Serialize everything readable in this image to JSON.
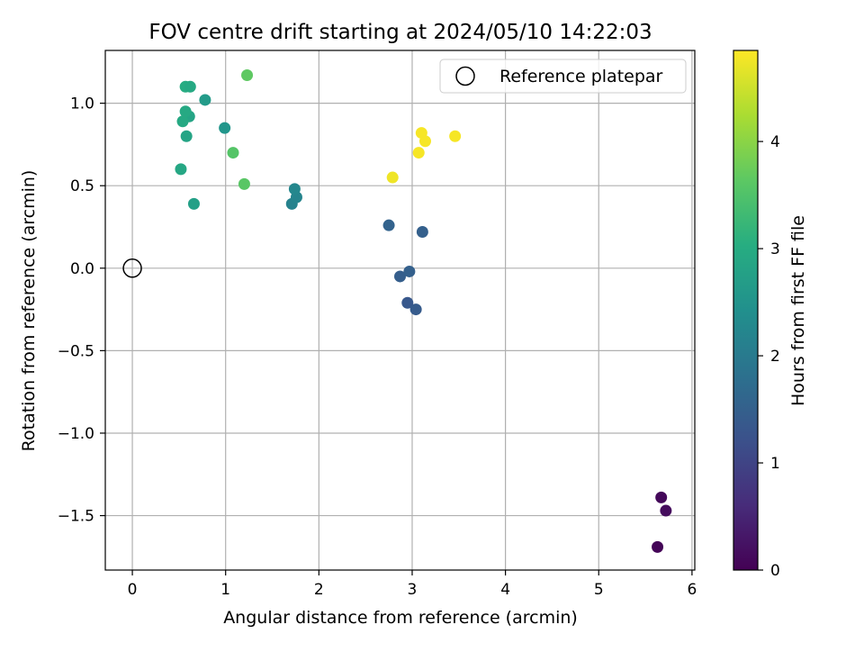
{
  "chart_data": {
    "type": "scatter",
    "title": "FOV centre drift starting at 2024/05/10 14:22:03",
    "xlabel": "Angular distance from reference (arcmin)",
    "ylabel": "Rotation from reference (arcmin)",
    "xlim": [
      -0.29,
      6.03
    ],
    "ylim": [
      -1.83,
      1.32
    ],
    "xticks": [
      0,
      1,
      2,
      3,
      4,
      5,
      6
    ],
    "xtick_labels": [
      "0",
      "1",
      "2",
      "3",
      "4",
      "5",
      "6"
    ],
    "yticks": [
      1.0,
      0.5,
      0.0,
      -0.5,
      -1.0,
      -1.5
    ],
    "ytick_labels": [
      "1.0",
      "0.5",
      "0.0",
      "−0.5",
      "−1.0",
      "−1.5"
    ],
    "grid": true,
    "legend_position": "upper-right",
    "colormap": "viridis",
    "colorbar": {
      "label": "Hours from first FF file",
      "range": [
        0,
        4.85
      ],
      "ticks": [
        0,
        1,
        2,
        3,
        4
      ],
      "tick_labels": [
        "0",
        "1",
        "2",
        "3",
        "4"
      ]
    },
    "reference": {
      "label": "Reference platepar",
      "x": 0.0,
      "y": 0.0
    },
    "points": [
      {
        "x": 5.63,
        "y": -1.69,
        "t": 0.05
      },
      {
        "x": 5.67,
        "y": -1.39,
        "t": 0.1
      },
      {
        "x": 5.72,
        "y": -1.47,
        "t": 0.15
      },
      {
        "x": 2.95,
        "y": -0.21,
        "t": 1.35
      },
      {
        "x": 3.04,
        "y": -0.25,
        "t": 1.4
      },
      {
        "x": 2.87,
        "y": -0.05,
        "t": 1.45
      },
      {
        "x": 2.97,
        "y": -0.02,
        "t": 1.5
      },
      {
        "x": 2.75,
        "y": 0.26,
        "t": 1.55
      },
      {
        "x": 3.11,
        "y": 0.22,
        "t": 1.5
      },
      {
        "x": 1.71,
        "y": 0.39,
        "t": 2.15
      },
      {
        "x": 1.76,
        "y": 0.43,
        "t": 2.2
      },
      {
        "x": 1.74,
        "y": 0.48,
        "t": 2.25
      },
      {
        "x": 0.99,
        "y": 0.85,
        "t": 2.55
      },
      {
        "x": 0.78,
        "y": 1.02,
        "t": 2.65
      },
      {
        "x": 0.66,
        "y": 0.39,
        "t": 2.75
      },
      {
        "x": 0.58,
        "y": 0.8,
        "t": 2.85
      },
      {
        "x": 0.61,
        "y": 0.92,
        "t": 2.85
      },
      {
        "x": 0.52,
        "y": 0.6,
        "t": 2.9
      },
      {
        "x": 0.54,
        "y": 0.89,
        "t": 2.95
      },
      {
        "x": 0.57,
        "y": 0.95,
        "t": 2.95
      },
      {
        "x": 0.57,
        "y": 1.1,
        "t": 3.0
      },
      {
        "x": 0.62,
        "y": 1.1,
        "t": 2.95
      },
      {
        "x": 1.08,
        "y": 0.7,
        "t": 3.55
      },
      {
        "x": 1.2,
        "y": 0.51,
        "t": 3.6
      },
      {
        "x": 1.23,
        "y": 1.17,
        "t": 3.65
      },
      {
        "x": 2.79,
        "y": 0.55,
        "t": 4.75
      },
      {
        "x": 3.07,
        "y": 0.7,
        "t": 4.8
      },
      {
        "x": 3.1,
        "y": 0.82,
        "t": 4.8
      },
      {
        "x": 3.14,
        "y": 0.77,
        "t": 4.8
      },
      {
        "x": 3.46,
        "y": 0.8,
        "t": 4.8
      }
    ]
  }
}
